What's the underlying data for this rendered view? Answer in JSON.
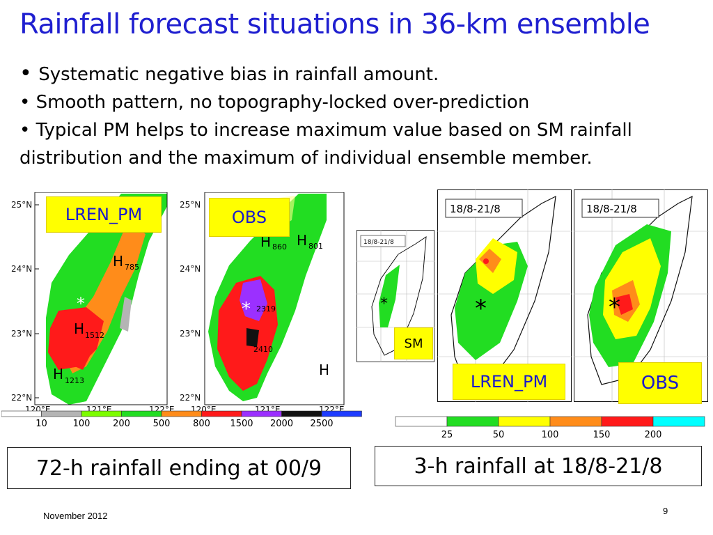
{
  "slide": {
    "title": "Rainfall forecast situations in 36-km ensemble",
    "bullets": [
      "Systematic negative bias in rainfall amount.",
      "Smooth pattern, no topography-locked over-prediction",
      "Typical PM helps to increase maximum value based on SM rainfall distribution and the maximum of individual ensemble member."
    ],
    "footer": "November 2012",
    "page_number": "9"
  },
  "left_maps": {
    "lat_labels": [
      "25°N",
      "24°N",
      "23°N",
      "22°N"
    ],
    "lon_labels": [
      "120°E",
      "121°E",
      "122°E"
    ],
    "panel1": {
      "label": "LREN_PM",
      "highs": [
        {
          "h": "H",
          "v": "785"
        },
        {
          "h": "H",
          "v": "1512"
        },
        {
          "h": "H",
          "v": "1213"
        }
      ],
      "star": "*"
    },
    "panel2": {
      "label": "OBS",
      "highs": [
        {
          "h": "H",
          "v": "860"
        },
        {
          "h": "H",
          "v": "801"
        },
        {
          "h": "",
          "v": "2319"
        },
        {
          "h": "",
          "v": "2410"
        },
        {
          "h": "H",
          "v": ""
        }
      ],
      "star": "*"
    },
    "colorbar": {
      "ticks": [
        "10",
        "100",
        "200",
        "500",
        "800",
        "1500",
        "2000",
        "2500"
      ],
      "colors": [
        "#ffffff",
        "#b4b4b4",
        "#7cfc00",
        "#22dd22",
        "#ff8c1a",
        "#ff1a1a",
        "#9b30ff",
        "#111111",
        "#1e3cff"
      ]
    },
    "caption": "72-h rainfall ending at 00/9"
  },
  "right_maps": {
    "sm": {
      "date": "18/8-21/8",
      "label": "SM",
      "star": "*"
    },
    "lren": {
      "date": "18/8-21/8",
      "label": "LREN_PM",
      "star": "*"
    },
    "obs": {
      "date": "18/8-21/8",
      "label": "OBS",
      "star": "*"
    },
    "colorbar": {
      "ticks": [
        "25",
        "50",
        "100",
        "150",
        "200"
      ],
      "colors": [
        "#ffffff",
        "#22dd22",
        "#ffff00",
        "#ff8c1a",
        "#ff1a1a",
        "#00ffff"
      ]
    },
    "caption": "3-h rainfall at 18/8-21/8"
  }
}
